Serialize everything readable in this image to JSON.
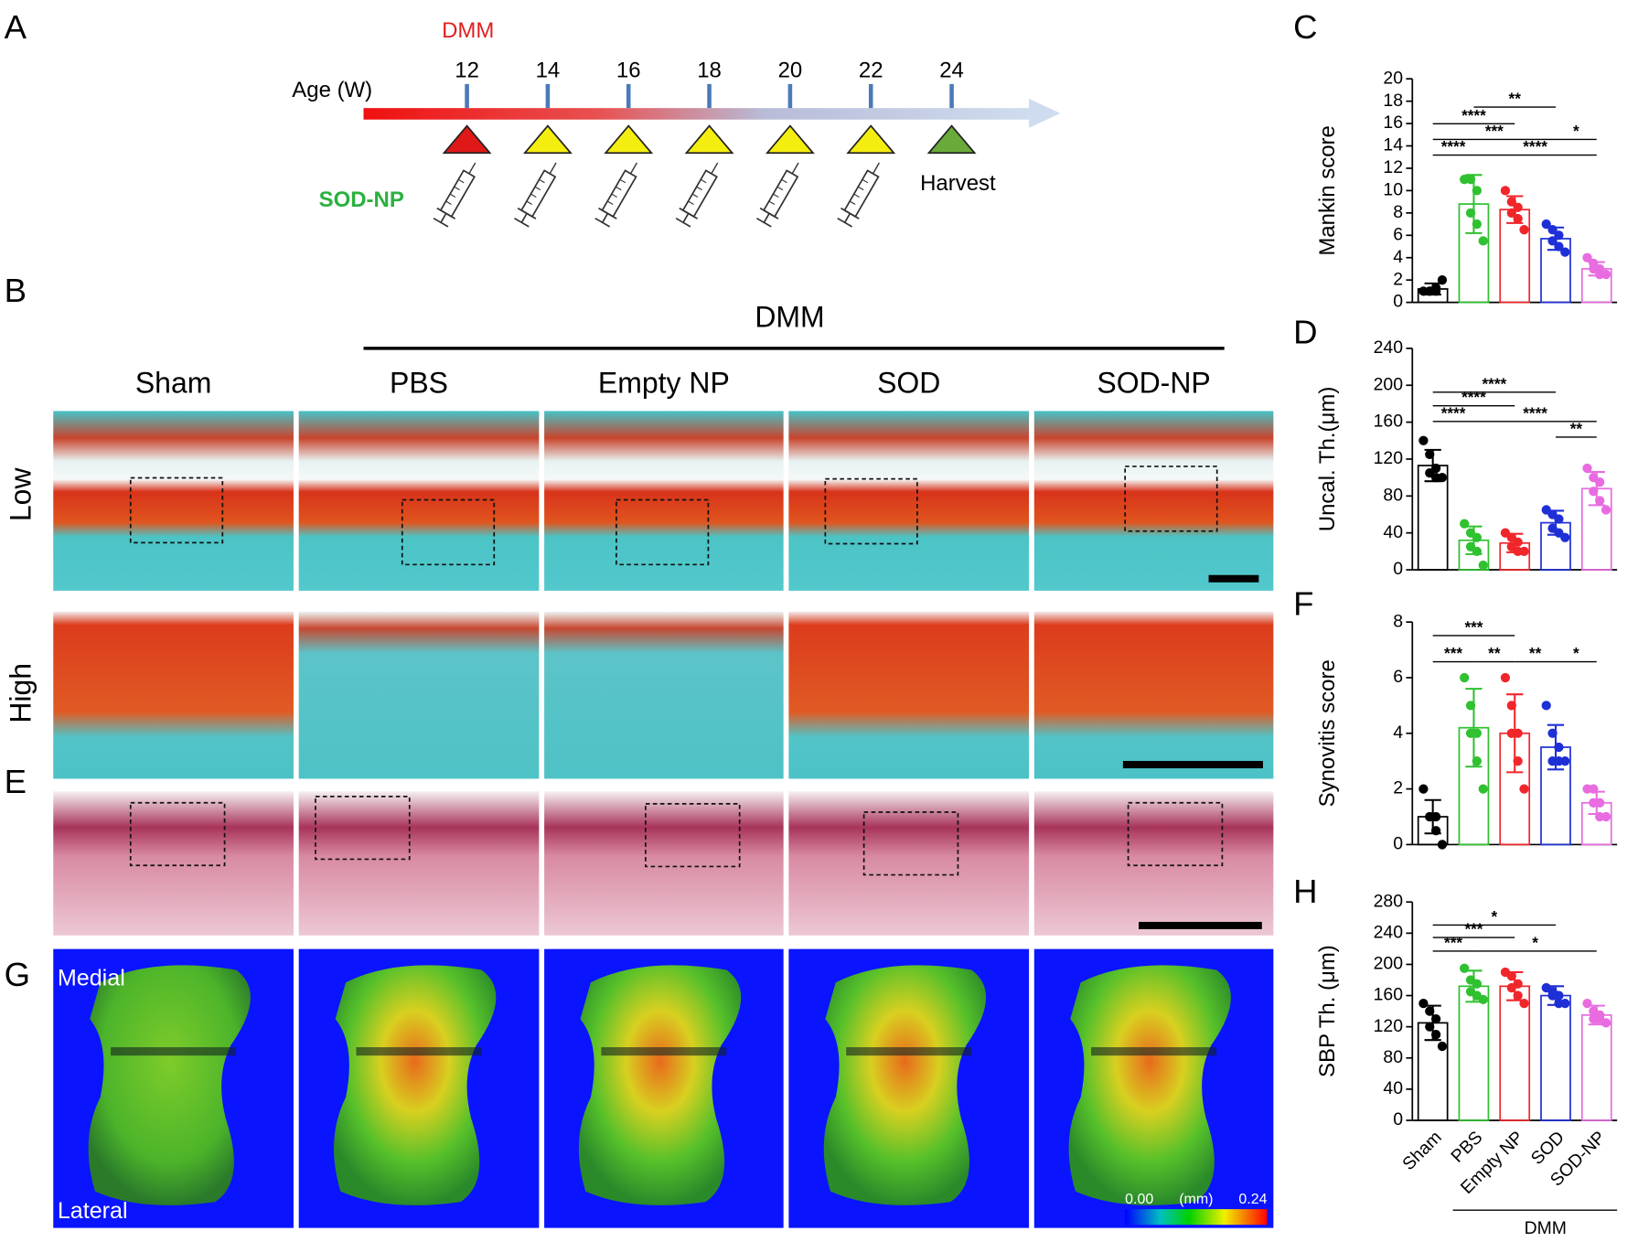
{
  "panel_labels": [
    "A",
    "B",
    "C",
    "D",
    "E",
    "F",
    "G",
    "H"
  ],
  "timeline": {
    "event_label": "DMM",
    "axis_label": "Age (W)",
    "ages": [
      12,
      14,
      16,
      18,
      20,
      22,
      24
    ],
    "treatment_label": "SOD-NP",
    "end_label": "Harvest"
  },
  "histology": {
    "group_label": "DMM",
    "columns": [
      "Sham",
      "PBS",
      "Empty NP",
      "SOD",
      "SOD-NP"
    ],
    "rows": [
      "Low",
      "High"
    ]
  },
  "morphometry": {
    "top_label": "Medial",
    "bottom_label": "Lateral",
    "colorbar": {
      "min_label": "0.00",
      "unit_label": "(mm)",
      "max_label": "0.24"
    }
  },
  "chart_data": [
    {
      "type": "bar",
      "ylabel": "Mankin score",
      "values": [
        1.2,
        8.8,
        8.3,
        5.7,
        3.0
      ],
      "errors": [
        0.5,
        2.6,
        1.2,
        1.0,
        0.6
      ],
      "points": [
        [
          1,
          1,
          1,
          1,
          1.3,
          2
        ],
        [
          11,
          11,
          10,
          8,
          7,
          5.5
        ],
        [
          10,
          9,
          8.5,
          8,
          7.5,
          6.5
        ],
        [
          7,
          6.5,
          6,
          5.5,
          5,
          4.5
        ],
        [
          4,
          3.5,
          3,
          3,
          2.5,
          2.5
        ]
      ],
      "colors": [
        "#000000",
        "#2fc12f",
        "#f0262b",
        "#1f2fd6",
        "#e86ce0"
      ],
      "ylim": [
        0,
        20
      ],
      "yticks": [
        0,
        2,
        4,
        6,
        8,
        10,
        12,
        14,
        16,
        18,
        20
      ],
      "significance": [
        {
          "from": 1,
          "to": 3,
          "label": "**"
        },
        {
          "from": 0,
          "to": 2,
          "label": "****"
        },
        {
          "from": 0,
          "to": 3,
          "label": "***"
        },
        {
          "from": 3,
          "to": 4,
          "label": "*"
        },
        {
          "from": 0,
          "to": 1,
          "label": "****"
        },
        {
          "from": 1,
          "to": 4,
          "label": "****"
        }
      ]
    },
    {
      "type": "bar",
      "ylabel": "Uncal. Th.(μm)",
      "values": [
        113,
        32,
        29,
        51,
        88
      ],
      "errors": [
        17,
        15,
        10,
        13,
        18
      ],
      "points": [
        [
          140,
          125,
          110,
          105,
          100,
          100
        ],
        [
          50,
          40,
          35,
          25,
          20,
          5
        ],
        [
          40,
          35,
          30,
          25,
          20,
          20
        ],
        [
          65,
          60,
          55,
          45,
          40,
          35
        ],
        [
          110,
          100,
          95,
          85,
          75,
          65
        ]
      ],
      "colors": [
        "#000000",
        "#2fc12f",
        "#f0262b",
        "#1f2fd6",
        "#e86ce0"
      ],
      "ylim": [
        0,
        240
      ],
      "yticks": [
        0,
        40,
        80,
        120,
        160,
        200,
        240
      ],
      "significance": [
        {
          "from": 0,
          "to": 3,
          "label": "****"
        },
        {
          "from": 0,
          "to": 2,
          "label": "****"
        },
        {
          "from": 0,
          "to": 1,
          "label": "****"
        },
        {
          "from": 1,
          "to": 4,
          "label": "****"
        },
        {
          "from": 3,
          "to": 4,
          "label": "**"
        }
      ]
    },
    {
      "type": "bar",
      "ylabel": "Synovitis score",
      "values": [
        1.0,
        4.2,
        4.0,
        3.5,
        1.5
      ],
      "errors": [
        0.6,
        1.4,
        1.4,
        0.8,
        0.4
      ],
      "points": [
        [
          2,
          1,
          1,
          1,
          0.5,
          0
        ],
        [
          6,
          5,
          4,
          4,
          3,
          2
        ],
        [
          6,
          5,
          4,
          4,
          3,
          2
        ],
        [
          5,
          4,
          3.5,
          3,
          3,
          3
        ],
        [
          2,
          2,
          1.5,
          1.5,
          1,
          1
        ]
      ],
      "colors": [
        "#000000",
        "#2fc12f",
        "#f0262b",
        "#1f2fd6",
        "#e86ce0"
      ],
      "ylim": [
        0,
        8
      ],
      "yticks": [
        0,
        2,
        4,
        6,
        8
      ],
      "significance": [
        {
          "from": 0,
          "to": 2,
          "label": "***"
        },
        {
          "from": 0,
          "to": 1,
          "label": "***"
        },
        {
          "from": 1,
          "to": 2,
          "label": "**"
        },
        {
          "from": 2,
          "to": 3,
          "label": "**"
        },
        {
          "from": 3,
          "to": 4,
          "label": "*"
        }
      ]
    },
    {
      "type": "bar",
      "ylabel": "SBP Th. (μm)",
      "categories": [
        "Sham",
        "PBS",
        "Empty NP",
        "SOD",
        "SOD-NP"
      ],
      "group_label": "DMM",
      "values": [
        125,
        172,
        172,
        160,
        135
      ],
      "errors": [
        22,
        20,
        18,
        12,
        12
      ],
      "points": [
        [
          150,
          140,
          130,
          120,
          110,
          95
        ],
        [
          195,
          180,
          175,
          165,
          160,
          155
        ],
        [
          190,
          185,
          175,
          170,
          160,
          150
        ],
        [
          170,
          165,
          160,
          160,
          150,
          150
        ],
        [
          150,
          140,
          135,
          130,
          130,
          125
        ]
      ],
      "colors": [
        "#000000",
        "#2fc12f",
        "#f0262b",
        "#1f2fd6",
        "#e86ce0"
      ],
      "ylim": [
        0,
        280
      ],
      "yticks": [
        0,
        40,
        80,
        120,
        160,
        200,
        240,
        280
      ],
      "significance": [
        {
          "from": 0,
          "to": 3,
          "label": "*"
        },
        {
          "from": 0,
          "to": 2,
          "label": "***"
        },
        {
          "from": 0,
          "to": 1,
          "label": "***"
        },
        {
          "from": 1,
          "to": 4,
          "label": "*"
        }
      ]
    }
  ]
}
